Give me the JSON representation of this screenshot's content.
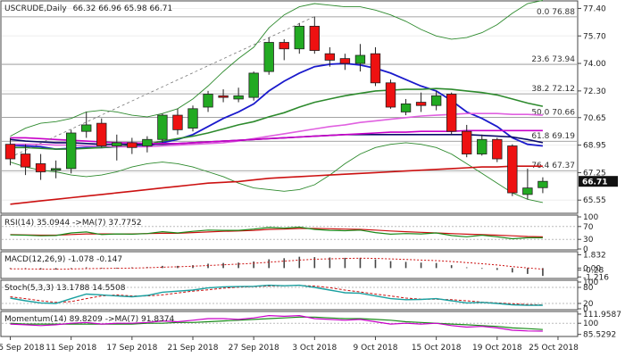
{
  "chart_data": {
    "type": "candlestick",
    "header": {
      "symbol": "USCRUDE,Daily",
      "ohlc_text": "66.32 66.96 65.98 66.71"
    },
    "x_tick_labels": [
      "5 Sep 2018",
      "11 Sep 2018",
      "17 Sep 2018",
      "21 Sep 2018",
      "27 Sep 2018",
      "3 Oct 2018",
      "9 Oct 2018",
      "15 Oct 2018",
      "19 Oct 2018",
      "25 Oct 2018"
    ],
    "x_tick_index": [
      0,
      4,
      8,
      12,
      16,
      20,
      24,
      28,
      32,
      36
    ],
    "price_axis": {
      "ylim": [
        64.9,
        77.7
      ],
      "ticks": [
        "77.40",
        "75.70",
        "74.00",
        "72.30",
        "70.65",
        "68.95",
        "67.25",
        "65.55"
      ],
      "tick_values": [
        77.4,
        75.7,
        74.0,
        72.3,
        70.65,
        68.95,
        67.25,
        65.55
      ],
      "last_price": "66.71",
      "last_value": 66.71
    },
    "candles": [
      {
        "o": 69.0,
        "h": 69.4,
        "l": 67.7,
        "c": 68.1
      },
      {
        "o": 68.4,
        "h": 69.0,
        "l": 67.1,
        "c": 67.6
      },
      {
        "o": 67.8,
        "h": 68.4,
        "l": 66.8,
        "c": 67.3
      },
      {
        "o": 67.4,
        "h": 68.0,
        "l": 66.9,
        "c": 67.5
      },
      {
        "o": 67.5,
        "h": 69.9,
        "l": 67.2,
        "c": 69.7
      },
      {
        "o": 69.8,
        "h": 71.0,
        "l": 69.4,
        "c": 70.2
      },
      {
        "o": 70.3,
        "h": 70.6,
        "l": 68.8,
        "c": 68.9
      },
      {
        "o": 68.9,
        "h": 69.6,
        "l": 68.0,
        "c": 69.1
      },
      {
        "o": 69.1,
        "h": 69.4,
        "l": 68.4,
        "c": 68.8
      },
      {
        "o": 68.9,
        "h": 69.5,
        "l": 68.5,
        "c": 69.3
      },
      {
        "o": 69.3,
        "h": 70.9,
        "l": 69.1,
        "c": 70.8
      },
      {
        "o": 70.8,
        "h": 71.2,
        "l": 69.6,
        "c": 69.9
      },
      {
        "o": 70.0,
        "h": 71.4,
        "l": 69.8,
        "c": 71.2
      },
      {
        "o": 71.3,
        "h": 72.3,
        "l": 71.0,
        "c": 72.1
      },
      {
        "o": 72.0,
        "h": 72.4,
        "l": 71.6,
        "c": 71.9
      },
      {
        "o": 71.8,
        "h": 72.5,
        "l": 71.6,
        "c": 72.0
      },
      {
        "o": 71.9,
        "h": 73.5,
        "l": 71.7,
        "c": 73.4
      },
      {
        "o": 73.5,
        "h": 75.6,
        "l": 73.3,
        "c": 75.3
      },
      {
        "o": 75.3,
        "h": 75.5,
        "l": 74.2,
        "c": 74.9
      },
      {
        "o": 74.9,
        "h": 76.5,
        "l": 74.6,
        "c": 76.3
      },
      {
        "o": 76.3,
        "h": 76.9,
        "l": 74.6,
        "c": 74.8
      },
      {
        "o": 74.6,
        "h": 75.0,
        "l": 73.8,
        "c": 74.2
      },
      {
        "o": 74.3,
        "h": 74.6,
        "l": 73.6,
        "c": 74.0
      },
      {
        "o": 74.0,
        "h": 75.2,
        "l": 73.5,
        "c": 74.5
      },
      {
        "o": 74.6,
        "h": 75.0,
        "l": 72.6,
        "c": 72.8
      },
      {
        "o": 72.8,
        "h": 73.0,
        "l": 71.2,
        "c": 71.3
      },
      {
        "o": 71.0,
        "h": 71.8,
        "l": 70.8,
        "c": 71.5
      },
      {
        "o": 71.6,
        "h": 72.2,
        "l": 71.0,
        "c": 71.4
      },
      {
        "o": 71.4,
        "h": 72.3,
        "l": 71.1,
        "c": 72.0
      },
      {
        "o": 72.1,
        "h": 72.2,
        "l": 69.6,
        "c": 69.8
      },
      {
        "o": 69.8,
        "h": 70.2,
        "l": 68.2,
        "c": 68.4
      },
      {
        "o": 68.4,
        "h": 69.6,
        "l": 68.3,
        "c": 69.3
      },
      {
        "o": 69.3,
        "h": 69.4,
        "l": 67.9,
        "c": 68.1
      },
      {
        "o": 68.9,
        "h": 69.0,
        "l": 65.8,
        "c": 66.0
      },
      {
        "o": 65.9,
        "h": 67.5,
        "l": 65.6,
        "c": 66.3
      },
      {
        "o": 66.32,
        "h": 66.96,
        "l": 65.98,
        "c": 66.71
      }
    ],
    "fib_levels": [
      {
        "label": "0.0 76.88",
        "value": 76.88
      },
      {
        "label": "23.6 73.94",
        "value": 73.94
      },
      {
        "label": "38.2 72.12",
        "value": 72.12
      },
      {
        "label": "50.0 70.66",
        "value": 70.66
      },
      {
        "label": "61.8 69.19",
        "value": 69.19
      },
      {
        "label": "76.4 67.37",
        "value": 67.37
      }
    ],
    "overlays": [
      {
        "kind": "ma-fast",
        "color": "#1a1acc",
        "values": [
          68.95,
          68.9,
          68.85,
          68.7,
          68.75,
          68.8,
          68.8,
          68.85,
          68.9,
          68.9,
          69.1,
          69.3,
          69.6,
          70.1,
          70.6,
          71.0,
          71.5,
          72.3,
          72.9,
          73.4,
          73.8,
          73.95,
          74.0,
          73.9,
          73.7,
          73.4,
          73.0,
          72.6,
          72.3,
          71.7,
          71.0,
          70.6,
          70.1,
          69.4,
          69.0,
          68.9
        ]
      },
      {
        "kind": "ma-mid",
        "color": "#2d8a2d",
        "values": [
          68.8,
          68.8,
          68.75,
          68.7,
          68.7,
          68.75,
          68.8,
          68.85,
          68.95,
          69.0,
          69.2,
          69.35,
          69.5,
          69.7,
          69.95,
          70.2,
          70.4,
          70.7,
          70.95,
          71.3,
          71.6,
          71.8,
          72.0,
          72.15,
          72.3,
          72.35,
          72.4,
          72.4,
          72.45,
          72.4,
          72.3,
          72.2,
          72.05,
          71.8,
          71.55,
          71.35
        ]
      },
      {
        "kind": "ma-slow",
        "color": "#e060e0",
        "values": [
          69.0,
          69.0,
          69.0,
          68.95,
          68.95,
          68.9,
          68.9,
          68.85,
          68.85,
          68.85,
          68.9,
          68.95,
          69.0,
          69.05,
          69.1,
          69.2,
          69.35,
          69.5,
          69.65,
          69.8,
          69.95,
          70.1,
          70.2,
          70.35,
          70.45,
          70.55,
          70.65,
          70.75,
          70.8,
          70.85,
          70.9,
          70.9,
          70.9,
          70.85,
          70.85,
          70.8
        ]
      },
      {
        "kind": "ma-long-blue",
        "color": "#0a0a6a",
        "values": [
          69.3,
          69.2,
          69.15,
          69.1,
          69.1,
          69.05,
          69.0,
          69.0,
          69.0,
          69.0,
          69.0,
          69.05,
          69.1,
          69.15,
          69.2,
          69.25,
          69.3,
          69.35,
          69.4,
          69.45,
          69.5,
          69.55,
          69.6,
          69.6,
          69.6,
          69.6,
          69.6,
          69.6,
          69.6,
          69.6,
          69.6,
          69.55,
          69.5,
          69.45,
          69.3,
          69.1
        ]
      },
      {
        "kind": "ma-long-pink",
        "color": "#c800c8",
        "values": [
          69.4,
          69.4,
          69.35,
          69.3,
          69.25,
          69.2,
          69.15,
          69.1,
          69.1,
          69.05,
          69.05,
          69.05,
          69.1,
          69.15,
          69.2,
          69.25,
          69.3,
          69.35,
          69.4,
          69.45,
          69.5,
          69.55,
          69.6,
          69.65,
          69.7,
          69.75,
          69.75,
          69.8,
          69.8,
          69.8,
          69.85,
          69.85,
          69.85,
          69.85,
          69.85,
          69.85
        ]
      },
      {
        "kind": "ma-200",
        "color": "#cc1111",
        "values": [
          65.3,
          65.4,
          65.5,
          65.6,
          65.7,
          65.8,
          65.9,
          66.0,
          66.1,
          66.2,
          66.3,
          66.4,
          66.5,
          66.6,
          66.65,
          66.7,
          66.8,
          66.9,
          66.95,
          67.0,
          67.05,
          67.1,
          67.15,
          67.2,
          67.25,
          67.3,
          67.35,
          67.4,
          67.45,
          67.5,
          67.55,
          67.6,
          67.6,
          67.65,
          67.65,
          67.65
        ]
      },
      {
        "kind": "bb-upper",
        "color": "#2d8a2d",
        "values": [
          69.5,
          70.0,
          70.3,
          70.4,
          70.6,
          71.0,
          71.1,
          71.0,
          70.8,
          70.7,
          70.9,
          71.2,
          71.8,
          72.6,
          73.5,
          74.3,
          75.0,
          76.2,
          77.0,
          77.5,
          77.7,
          77.6,
          77.5,
          77.5,
          77.3,
          77.0,
          76.6,
          76.1,
          75.7,
          75.5,
          75.6,
          75.9,
          76.4,
          77.1,
          77.7,
          77.9
        ]
      },
      {
        "kind": "bb-lower",
        "color": "#2d8a2d",
        "values": [
          67.9,
          67.6,
          67.4,
          67.3,
          67.1,
          67.0,
          67.1,
          67.3,
          67.6,
          67.8,
          67.9,
          67.8,
          67.6,
          67.3,
          67.0,
          66.6,
          66.3,
          66.2,
          66.1,
          66.2,
          66.5,
          67.1,
          67.8,
          68.4,
          68.8,
          69.0,
          69.1,
          69.0,
          68.8,
          68.4,
          67.8,
          67.2,
          66.6,
          66.0,
          65.6,
          65.4
        ]
      }
    ],
    "trendline": {
      "from_index": 0,
      "from_value": 68.2,
      "to_index": 20,
      "to_value": 76.9
    },
    "rsi": {
      "header": "RSI(14) 35.0944 ->MA(7) 37.7752",
      "ylim": [
        0,
        100
      ],
      "ticks": [
        "100",
        "70",
        "30",
        "0"
      ],
      "tick_values": [
        100,
        70,
        30,
        0
      ],
      "rsi": [
        44,
        43,
        41,
        42,
        50,
        53,
        45,
        47,
        46,
        48,
        54,
        50,
        55,
        59,
        58,
        58,
        62,
        67,
        65,
        68,
        61,
        58,
        57,
        59,
        51,
        46,
        48,
        47,
        50,
        42,
        38,
        43,
        38,
        32,
        35,
        35.09
      ],
      "ma": [
        45,
        44,
        43,
        43,
        45,
        47,
        47,
        47,
        47,
        48,
        49,
        49,
        51,
        53,
        55,
        56,
        58,
        61,
        62,
        64,
        64,
        63,
        62,
        61,
        59,
        56,
        54,
        52,
        50,
        48,
        46,
        45,
        43,
        41,
        39,
        37.78
      ]
    },
    "macd": {
      "header": "MACD(12,26,9) -1.078 -0.147",
      "ylim": [
        -1.3,
        2.0
      ],
      "ticks": [
        "1.832",
        "0.00",
        "-0.28",
        "-1.216"
      ],
      "tick_values": [
        1.832,
        0.0,
        -0.28,
        -1.216
      ],
      "hist": [
        -0.1,
        -0.15,
        -0.2,
        -0.2,
        0.0,
        0.1,
        0.05,
        0.05,
        0.1,
        0.15,
        0.3,
        0.3,
        0.4,
        0.6,
        0.7,
        0.75,
        0.9,
        1.2,
        1.35,
        1.55,
        1.5,
        1.45,
        1.4,
        1.4,
        1.2,
        0.95,
        0.85,
        0.75,
        0.7,
        0.4,
        0.1,
        0.0,
        -0.25,
        -0.6,
        -0.8,
        -1.078
      ],
      "signal": [
        -0.1,
        -0.12,
        -0.14,
        -0.16,
        -0.13,
        -0.08,
        -0.05,
        -0.03,
        0.0,
        0.05,
        0.12,
        0.18,
        0.25,
        0.35,
        0.45,
        0.55,
        0.65,
        0.8,
        0.95,
        1.1,
        1.2,
        1.27,
        1.32,
        1.35,
        1.33,
        1.26,
        1.18,
        1.1,
        1.02,
        0.9,
        0.75,
        0.6,
        0.42,
        0.2,
        0.02,
        -0.147
      ]
    },
    "stoch": {
      "header": "Stoch(5,3,3) 13.1788 14.5508",
      "ylim": [
        0,
        100
      ],
      "ticks": [
        "100",
        "80",
        "20",
        "0"
      ],
      "tick_values": [
        100,
        80,
        20,
        0
      ],
      "k": [
        40,
        30,
        22,
        20,
        38,
        55,
        52,
        48,
        45,
        50,
        62,
        66,
        70,
        78,
        82,
        83,
        84,
        88,
        86,
        88,
        80,
        70,
        60,
        58,
        48,
        38,
        34,
        35,
        38,
        30,
        22,
        24,
        20,
        15,
        13,
        13.18
      ],
      "d": [
        45,
        38,
        30,
        24,
        27,
        38,
        48,
        52,
        48,
        48,
        52,
        59,
        66,
        71,
        77,
        81,
        83,
        85,
        86,
        87,
        85,
        79,
        70,
        63,
        55,
        48,
        40,
        36,
        36,
        34,
        30,
        25,
        22,
        19,
        16,
        14.55
      ]
    },
    "momentum": {
      "header": "Momentum(14) 89.8209 ->MA(7) 91.8374",
      "ylim": [
        84,
        113
      ],
      "ticks": [
        "111.9587",
        "100",
        "85.5292"
      ],
      "tick_values": [
        111.9587,
        100,
        85.5292
      ],
      "mom": [
        99,
        98,
        97,
        98,
        100,
        101,
        99,
        100,
        100,
        101,
        103,
        102,
        104,
        106,
        106,
        105,
        107,
        110,
        109,
        110,
        106,
        105,
        104,
        105,
        102,
        99,
        100,
        99,
        100,
        97,
        95,
        96,
        94,
        91,
        90,
        89.82
      ],
      "ma": [
        100,
        99,
        99,
        99,
        99,
        99,
        99,
        99,
        99,
        100,
        100,
        101,
        101,
        102,
        103,
        104,
        105,
        106,
        107,
        108,
        108,
        107,
        106,
        106,
        105,
        104,
        102,
        101,
        100,
        99,
        98,
        97,
        96,
        94,
        93,
        91.84
      ]
    }
  }
}
